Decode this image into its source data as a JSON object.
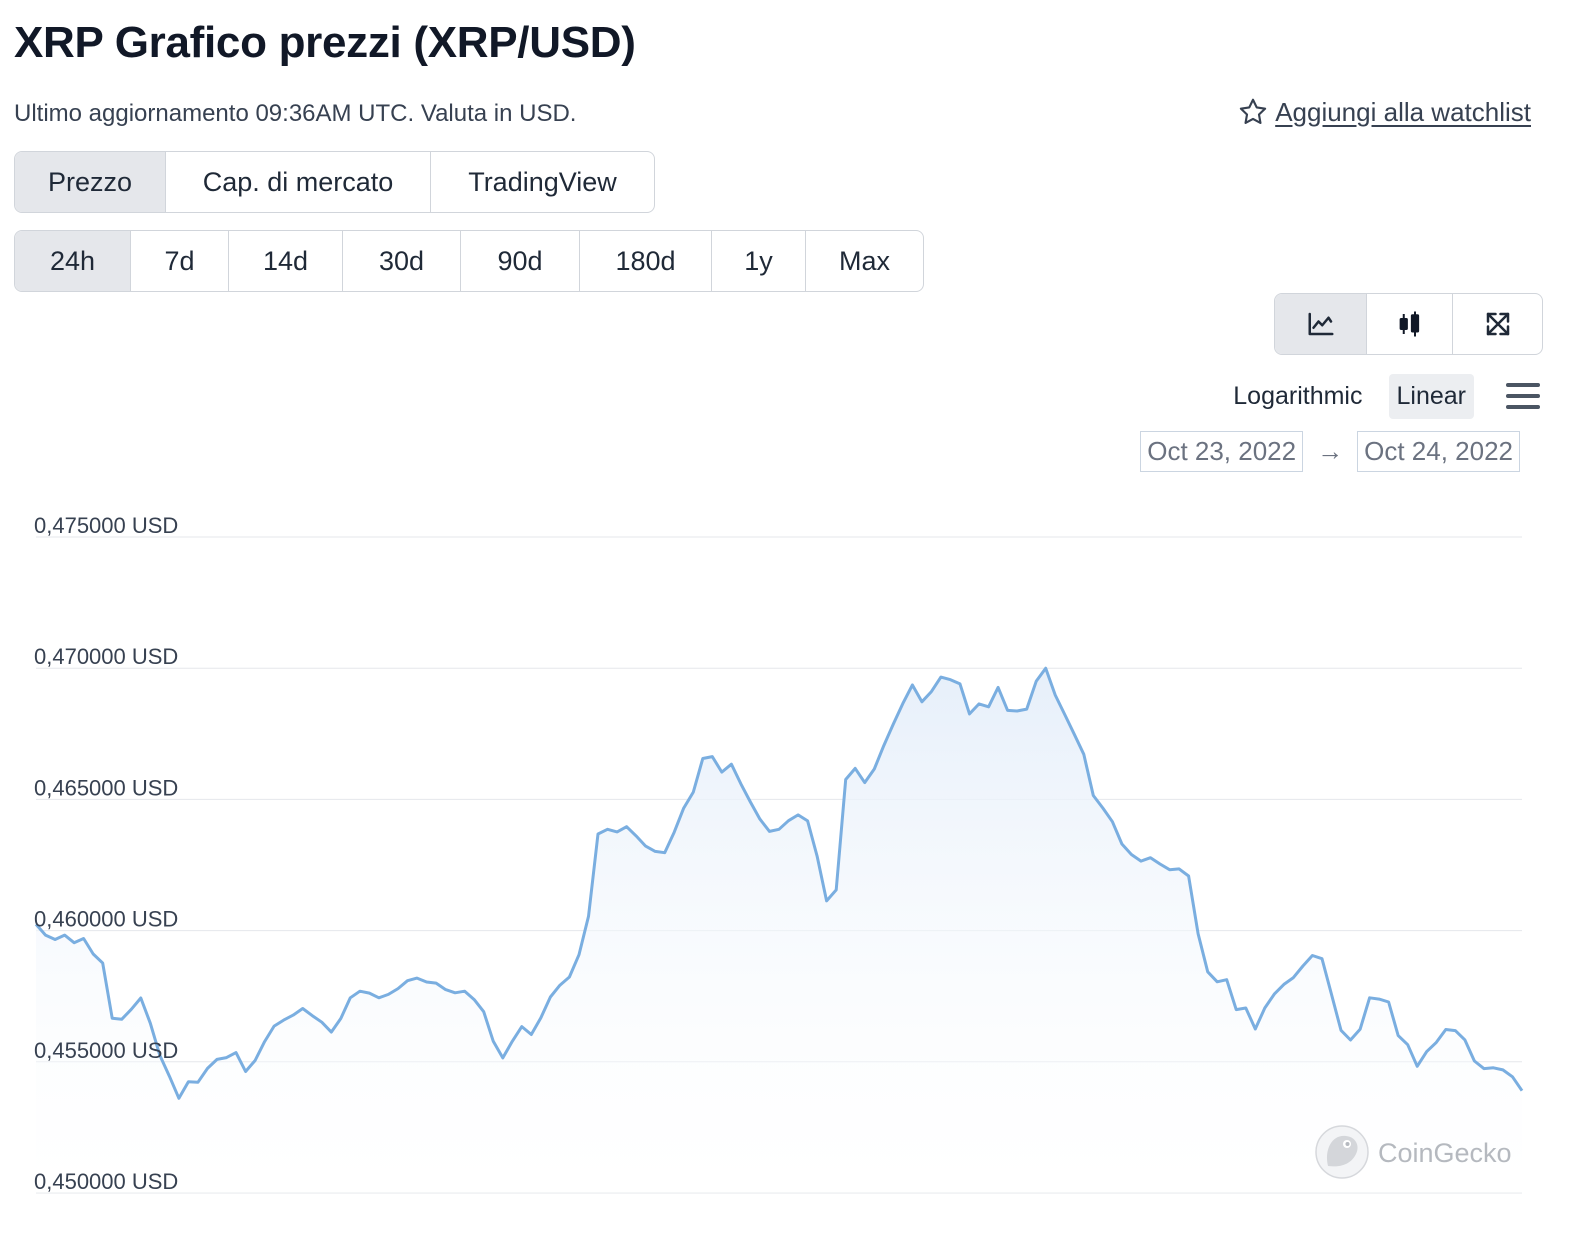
{
  "header": {
    "title": "XRP Grafico prezzi (XRP/USD)",
    "subtitle": "Ultimo aggiornamento 09:36AM UTC. Valuta in USD.",
    "watchlist_label": "Aggiungi alla watchlist"
  },
  "type_tabs": [
    {
      "label": "Prezzo",
      "active": true
    },
    {
      "label": "Cap. di mercato",
      "active": false
    },
    {
      "label": "TradingView",
      "active": false
    }
  ],
  "range_tabs": [
    {
      "label": "24h",
      "active": true
    },
    {
      "label": "7d",
      "active": false
    },
    {
      "label": "14d",
      "active": false
    },
    {
      "label": "30d",
      "active": false
    },
    {
      "label": "90d",
      "active": false
    },
    {
      "label": "180d",
      "active": false
    },
    {
      "label": "1y",
      "active": false
    },
    {
      "label": "Max",
      "active": false
    }
  ],
  "view_buttons": [
    {
      "icon": "line-chart-icon",
      "active": true
    },
    {
      "icon": "candlestick-icon",
      "active": false
    },
    {
      "icon": "expand-icon",
      "active": false
    }
  ],
  "scale": {
    "logarithmic_label": "Logarithmic",
    "linear_label": "Linear",
    "selected": "Linear"
  },
  "date_range": {
    "from": "Oct 23, 2022",
    "arrow": "→",
    "to": "Oct 24, 2022"
  },
  "watermark": "CoinGecko",
  "colors": {
    "line": "#7aaee0",
    "fill_top": "#e6effa",
    "grid": "#e5e7eb",
    "active_tab": "#e5e7eb"
  },
  "chart_data": {
    "type": "area",
    "ylim": [
      0.45,
      0.475
    ],
    "ytick_labels": [
      "0,475000 USD",
      "0,470000 USD",
      "0,465000 USD",
      "0,460000 USD",
      "0,455000 USD",
      "0,450000 USD"
    ],
    "ytick_values": [
      0.475,
      0.47,
      0.465,
      0.46,
      0.455,
      0.45
    ],
    "grid": true,
    "series": [
      {
        "values": [
          0.46024,
          0.45983,
          0.45966,
          0.45983,
          0.45954,
          0.4597,
          0.45911,
          0.45876,
          0.45666,
          0.45662,
          0.457,
          0.45743,
          0.45647,
          0.45525,
          0.45445,
          0.45361,
          0.45424,
          0.45422,
          0.45475,
          0.45509,
          0.45516,
          0.45535,
          0.45463,
          0.45505,
          0.45577,
          0.45636,
          0.45659,
          0.45678,
          0.45703,
          0.45676,
          0.45651,
          0.45613,
          0.45665,
          0.45744,
          0.45769,
          0.45762,
          0.45744,
          0.45757,
          0.45779,
          0.45809,
          0.45819,
          0.45804,
          0.458,
          0.45775,
          0.45763,
          0.45769,
          0.45737,
          0.45691,
          0.45579,
          0.45515,
          0.45578,
          0.45634,
          0.45604,
          0.45668,
          0.45747,
          0.45792,
          0.45823,
          0.45908,
          0.46054,
          0.46368,
          0.46386,
          0.46376,
          0.46396,
          0.46361,
          0.46322,
          0.46302,
          0.46297,
          0.46375,
          0.46467,
          0.46528,
          0.46656,
          0.46663,
          0.46604,
          0.46634,
          0.46559,
          0.4649,
          0.46425,
          0.46378,
          0.46386,
          0.46419,
          0.46441,
          0.46418,
          0.46284,
          0.46113,
          0.46155,
          0.46576,
          0.46618,
          0.46564,
          0.46616,
          0.46705,
          0.46787,
          0.46865,
          0.46936,
          0.46872,
          0.46911,
          0.46966,
          0.46956,
          0.4694,
          0.46826,
          0.46864,
          0.46853,
          0.46927,
          0.46839,
          0.46837,
          0.46844,
          0.4695,
          0.47,
          0.46898,
          0.46823,
          0.46748,
          0.46672,
          0.46515,
          0.46467,
          0.46415,
          0.4633,
          0.4629,
          0.46265,
          0.46278,
          0.46254,
          0.46232,
          0.46235,
          0.46208,
          0.45988,
          0.45843,
          0.45805,
          0.45813,
          0.45699,
          0.45705,
          0.45625,
          0.45705,
          0.45758,
          0.45795,
          0.45821,
          0.45865,
          0.45905,
          0.45893,
          0.45757,
          0.4562,
          0.45583,
          0.45624,
          0.45744,
          0.45739,
          0.45728,
          0.456,
          0.45565,
          0.45483,
          0.45539,
          0.45574,
          0.45623,
          0.45619,
          0.45584,
          0.45503,
          0.45474,
          0.45477,
          0.45469,
          0.45443,
          0.4539
        ]
      }
    ]
  }
}
